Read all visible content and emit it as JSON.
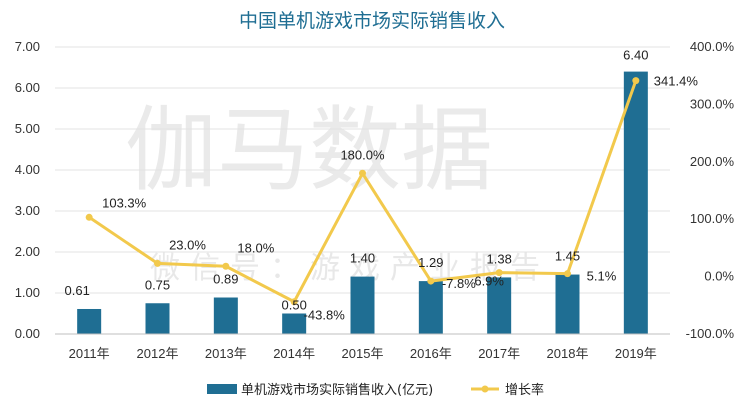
{
  "watermark": {
    "main": "伽马数据",
    "sub": "微信号：游戏产业报告"
  },
  "chart_data": {
    "type": "bar",
    "title": "中国单机游戏市场实际销售收入",
    "categories": [
      "2011年",
      "2012年",
      "2013年",
      "2014年",
      "2015年",
      "2016年",
      "2017年",
      "2018年",
      "2019年"
    ],
    "series": [
      {
        "name": "单机游戏市场实际销售收入(亿元)",
        "type": "bar",
        "axis": "left",
        "color": "#1f6e93",
        "values": [
          0.61,
          0.75,
          0.89,
          0.5,
          1.4,
          1.29,
          1.38,
          1.45,
          6.4
        ],
        "labels": [
          "0.61",
          "0.75",
          "0.89",
          "0.50",
          "1.40",
          "1.29",
          "1.38",
          "1.45",
          "6.40"
        ]
      },
      {
        "name": "增长率",
        "type": "line",
        "axis": "right",
        "color": "#f2c94c",
        "values": [
          103.3,
          23.0,
          18.0,
          -43.8,
          180.0,
          -7.8,
          6.9,
          5.1,
          341.4
        ],
        "labels": [
          "103.3%",
          "23.0%",
          "18.0%",
          "-43.8%",
          "180.0%",
          "-7.8%",
          "6.9%",
          "5.1%",
          "341.4%"
        ]
      }
    ],
    "y_left": {
      "min": 0,
      "max": 7,
      "ticks": [
        "0.00",
        "1.00",
        "2.00",
        "3.00",
        "4.00",
        "5.00",
        "6.00",
        "7.00"
      ]
    },
    "y_right": {
      "min": -100,
      "max": 400,
      "ticks": [
        "-100.0%",
        "0.0%",
        "100.0%",
        "200.0%",
        "300.0%",
        "400.0%"
      ]
    },
    "grid": true,
    "legend_position": "bottom"
  }
}
